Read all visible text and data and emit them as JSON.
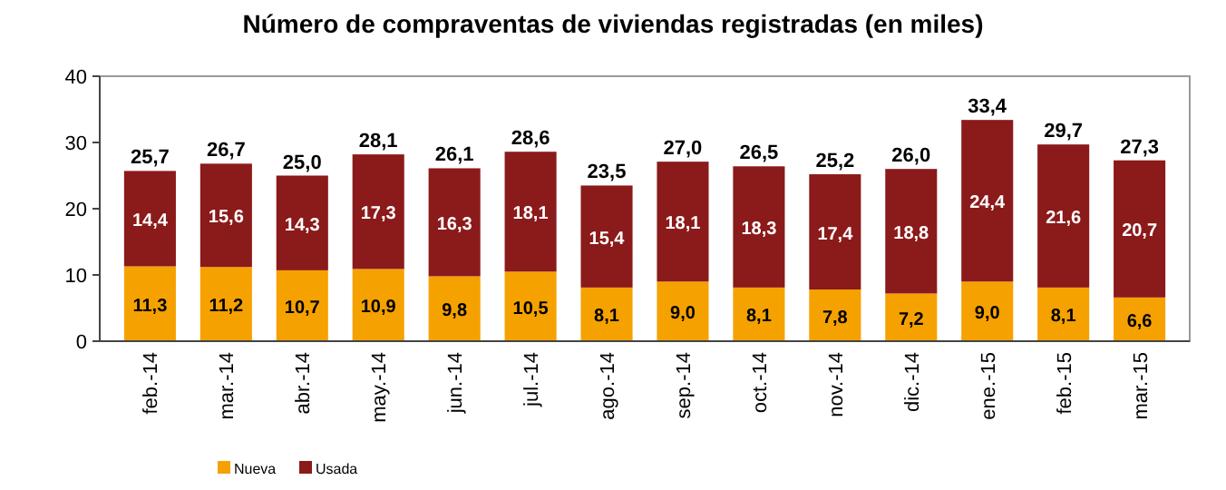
{
  "chart_data": {
    "type": "bar",
    "title": "Número de compraventas de viviendas registradas (en miles)",
    "stacked": true,
    "categories": [
      "feb.-14",
      "mar.-14",
      "abr.-14",
      "may.-14",
      "jun.-14",
      "jul.-14",
      "ago.-14",
      "sep.-14",
      "oct.-14",
      "nov.-14",
      "dic.-14",
      "ene.-15",
      "feb.-15",
      "mar.-15"
    ],
    "series": [
      {
        "name": "Nueva",
        "color": "#f5a100",
        "values": [
          11.3,
          11.2,
          10.7,
          10.9,
          9.8,
          10.5,
          8.1,
          9.0,
          8.1,
          7.8,
          7.2,
          9.0,
          8.1,
          6.6
        ],
        "value_labels": [
          "11,3",
          "11,2",
          "10,7",
          "10,9",
          "9,8",
          "10,5",
          "8,1",
          "9,0",
          "8,1",
          "7,8",
          "7,2",
          "9,0",
          "8,1",
          "6,6"
        ]
      },
      {
        "name": "Usada",
        "color": "#8b1a1a",
        "values": [
          14.4,
          15.6,
          14.3,
          17.3,
          16.3,
          18.1,
          15.4,
          18.1,
          18.3,
          17.4,
          18.8,
          24.4,
          21.6,
          20.7
        ],
        "value_labels": [
          "14,4",
          "15,6",
          "14,3",
          "17,3",
          "16,3",
          "18,1",
          "15,4",
          "18,1",
          "18,3",
          "17,4",
          "18,8",
          "24,4",
          "21,6",
          "20,7"
        ]
      }
    ],
    "totals": [
      "25,7",
      "26,7",
      "25,0",
      "28,1",
      "26,1",
      "28,6",
      "23,5",
      "27,0",
      "26,5",
      "25,2",
      "26,0",
      "33,4",
      "29,7",
      "27,3"
    ],
    "ylim": [
      0,
      40
    ],
    "yticks": [
      0,
      10,
      20,
      30,
      40
    ],
    "legend": "bottom left"
  }
}
